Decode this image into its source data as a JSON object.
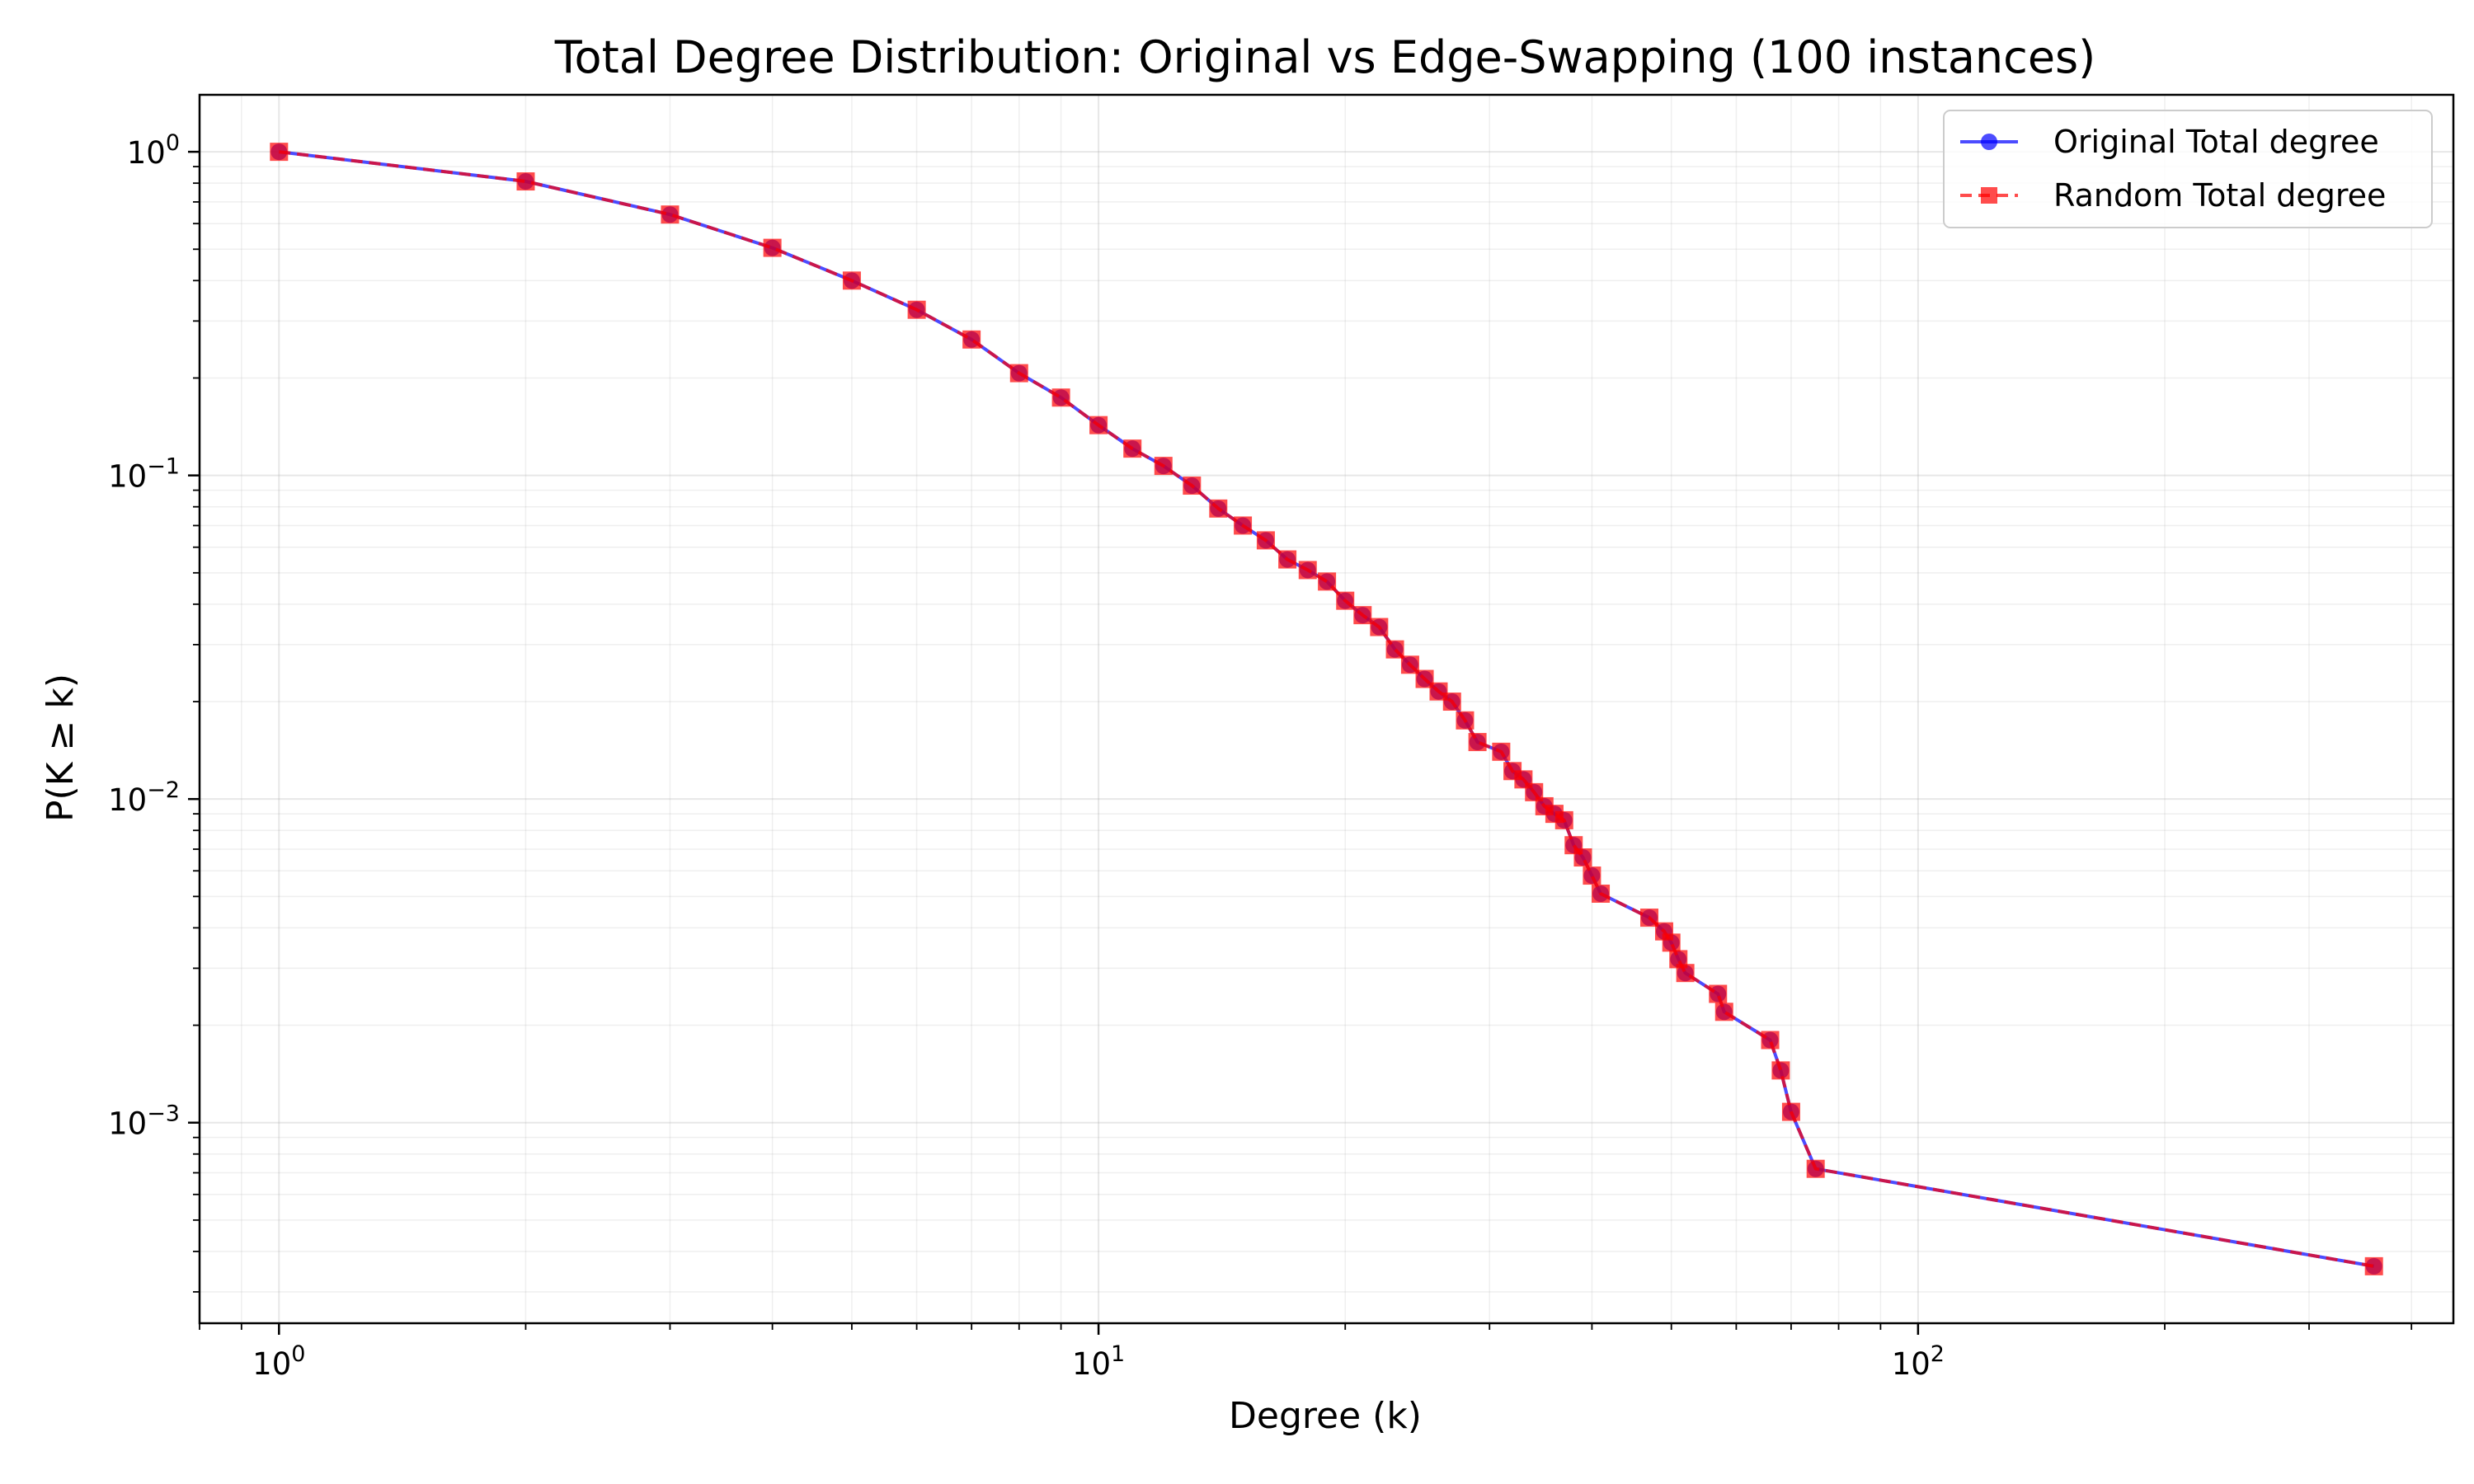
{
  "chart_data": {
    "type": "line",
    "title": "Total Degree Distribution: Original vs Edge-Swapping (100 instances)",
    "xlabel": "Degree (k)",
    "ylabel": "P(K ≥ k)",
    "xscale": "log",
    "yscale": "log",
    "xlim": [
      0.8,
      450
    ],
    "ylim": [
      0.00024,
      1.5
    ],
    "grid": true,
    "legend_position": "top-right",
    "x_ticks": [
      {
        "base": "10",
        "exp": "0",
        "value": 1
      },
      {
        "base": "10",
        "exp": "1",
        "value": 10
      },
      {
        "base": "10",
        "exp": "2",
        "value": 100
      }
    ],
    "y_ticks": [
      {
        "base": "10",
        "exp": "0",
        "value": 1
      },
      {
        "base": "10",
        "exp": "−1",
        "value": 0.1
      },
      {
        "base": "10",
        "exp": "−2",
        "value": 0.01
      },
      {
        "base": "10",
        "exp": "−3",
        "value": 0.001
      }
    ],
    "x": [
      1,
      2,
      3,
      4,
      5,
      6,
      7,
      8,
      9,
      10,
      11,
      12,
      13,
      14,
      15,
      16,
      17,
      18,
      19,
      20,
      21,
      22,
      23,
      24,
      25,
      26,
      27,
      28,
      29,
      31,
      32,
      33,
      34,
      35,
      36,
      37,
      38,
      39,
      40,
      41,
      47,
      49,
      50,
      51,
      52,
      57,
      58,
      66,
      68,
      70,
      75,
      360
    ],
    "series": [
      {
        "name": "Original Total degree",
        "color": "#0000ff",
        "marker": "circle",
        "linestyle": "solid",
        "values": [
          1.0,
          0.81,
          0.64,
          0.505,
          0.4,
          0.325,
          0.263,
          0.207,
          0.174,
          0.143,
          0.121,
          0.107,
          0.093,
          0.079,
          0.07,
          0.063,
          0.055,
          0.051,
          0.047,
          0.041,
          0.037,
          0.034,
          0.029,
          0.026,
          0.0235,
          0.0215,
          0.02,
          0.0175,
          0.015,
          0.014,
          0.0122,
          0.0115,
          0.0105,
          0.0095,
          0.009,
          0.0086,
          0.0072,
          0.0066,
          0.0058,
          0.0051,
          0.0043,
          0.0039,
          0.0036,
          0.0032,
          0.0029,
          0.0025,
          0.0022,
          0.0018,
          0.00145,
          0.00108,
          0.00072,
          0.00036
        ]
      },
      {
        "name": "Random Total degree",
        "color": "#ff0000",
        "marker": "square",
        "linestyle": "dashed",
        "values": [
          1.0,
          0.81,
          0.64,
          0.505,
          0.4,
          0.325,
          0.263,
          0.207,
          0.174,
          0.143,
          0.121,
          0.107,
          0.093,
          0.079,
          0.07,
          0.063,
          0.055,
          0.051,
          0.047,
          0.041,
          0.037,
          0.034,
          0.029,
          0.026,
          0.0235,
          0.0215,
          0.02,
          0.0175,
          0.015,
          0.014,
          0.0122,
          0.0115,
          0.0105,
          0.0095,
          0.009,
          0.0086,
          0.0072,
          0.0066,
          0.0058,
          0.0051,
          0.0043,
          0.0039,
          0.0036,
          0.0032,
          0.0029,
          0.0025,
          0.0022,
          0.0018,
          0.00145,
          0.00108,
          0.00072,
          0.00036
        ]
      }
    ]
  }
}
